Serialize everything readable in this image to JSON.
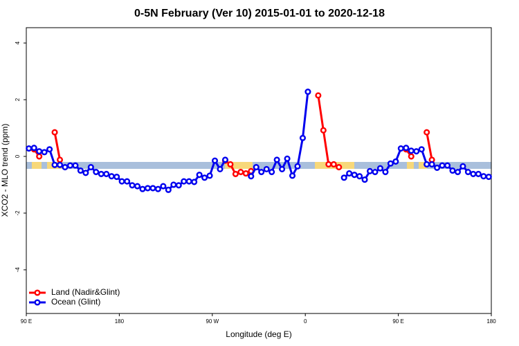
{
  "chart_data": {
    "type": "line",
    "title": "0-5N February (Ver 10)   2015-01-01 to 2020-12-18",
    "x_label": "Longitude (deg E)",
    "y_label": "XCO2 - MLO trend (ppm)",
    "x": [
      92.5,
      97.5,
      102.5,
      107.5,
      112.5,
      117.5,
      122.5,
      127.5,
      132.5,
      137.5,
      142.5,
      147.5,
      152.5,
      157.5,
      162.5,
      167.5,
      172.5,
      177.5,
      182.5,
      187.5,
      192.5,
      197.5,
      202.5,
      207.5,
      212.5,
      217.5,
      222.5,
      227.5,
      232.5,
      237.5,
      242.5,
      247.5,
      252.5,
      257.5,
      262.5,
      267.5,
      272.5,
      277.5,
      282.5,
      287.5,
      292.5,
      297.5,
      302.5,
      307.5,
      312.5,
      317.5,
      322.5,
      327.5,
      332.5,
      337.5,
      342.5,
      347.5,
      352.5,
      357.5,
      362.5,
      367.5,
      372.5,
      377.5,
      382.5,
      387.5,
      392.5,
      397.5,
      402.5,
      407.5,
      412.5,
      417.5,
      422.5,
      427.5,
      432.5,
      437.5,
      442.5,
      447.5,
      452.5,
      457.5,
      462.5,
      467.5,
      472.5,
      477.5,
      482.5,
      487.5,
      492.5,
      497.5,
      502.5,
      507.5,
      512.5,
      517.5,
      522.5,
      527.5,
      532.5,
      537.5
    ],
    "series": [
      {
        "name": "Land (Nadir&Glint)",
        "color": "#ff0000",
        "values": [
          null,
          0.25,
          0.0,
          null,
          null,
          0.85,
          -0.12,
          null,
          null,
          null,
          null,
          null,
          null,
          null,
          null,
          null,
          null,
          null,
          null,
          null,
          null,
          null,
          null,
          null,
          null,
          null,
          null,
          null,
          null,
          null,
          null,
          null,
          null,
          null,
          null,
          null,
          null,
          null,
          -0.15,
          -0.28,
          -0.62,
          -0.55,
          -0.6,
          -0.52,
          null,
          null,
          null,
          null,
          null,
          null,
          null,
          null,
          null,
          null,
          null,
          null,
          2.15,
          0.92,
          -0.28,
          -0.28,
          -0.38,
          null,
          null,
          null,
          null,
          null,
          null,
          null,
          null,
          null,
          null,
          null,
          null,
          0.25,
          0.0,
          null,
          null,
          0.85,
          -0.12,
          null,
          null,
          null,
          null,
          null,
          null,
          null,
          null,
          null,
          null,
          null
        ]
      },
      {
        "name": "Ocean (Glint)",
        "color": "#0000ee",
        "values": [
          0.28,
          0.3,
          0.18,
          0.15,
          0.25,
          -0.3,
          -0.3,
          -0.38,
          -0.32,
          -0.32,
          -0.5,
          -0.58,
          -0.38,
          -0.55,
          -0.62,
          -0.62,
          -0.7,
          -0.72,
          -0.88,
          -0.88,
          -1.02,
          -1.05,
          -1.15,
          -1.12,
          -1.12,
          -1.15,
          -1.05,
          -1.18,
          -1.0,
          -1.02,
          -0.88,
          -0.88,
          -0.9,
          -0.65,
          -0.75,
          -0.68,
          -0.15,
          -0.45,
          -0.12,
          null,
          null,
          null,
          null,
          -0.7,
          -0.38,
          -0.55,
          -0.45,
          -0.55,
          -0.12,
          -0.45,
          -0.08,
          -0.68,
          -0.35,
          0.65,
          2.28,
          null,
          null,
          null,
          null,
          null,
          null,
          -0.75,
          -0.6,
          -0.65,
          -0.7,
          -0.82,
          -0.52,
          -0.55,
          -0.42,
          -0.55,
          -0.25,
          -0.18,
          0.28,
          0.3,
          0.2,
          0.18,
          0.25,
          -0.28,
          -0.28,
          -0.4,
          -0.32,
          -0.32,
          -0.5,
          -0.55,
          -0.35,
          -0.55,
          -0.62,
          -0.62,
          -0.7,
          -0.72
        ]
      }
    ],
    "xlim": [
      90,
      540
    ],
    "xticks": [
      {
        "value": 90,
        "label": "90 E"
      },
      180,
      {
        "value": 270,
        "label": "90 W"
      },
      {
        "value": 360,
        "label": "0"
      },
      {
        "value": 450,
        "label": "90 E"
      },
      {
        "value": 540,
        "label": "180"
      }
    ],
    "ylim": [
      -5.54,
      4.54
    ],
    "yticks": [
      -4,
      -2,
      0,
      2,
      4
    ],
    "legend": "bottom-left"
  }
}
